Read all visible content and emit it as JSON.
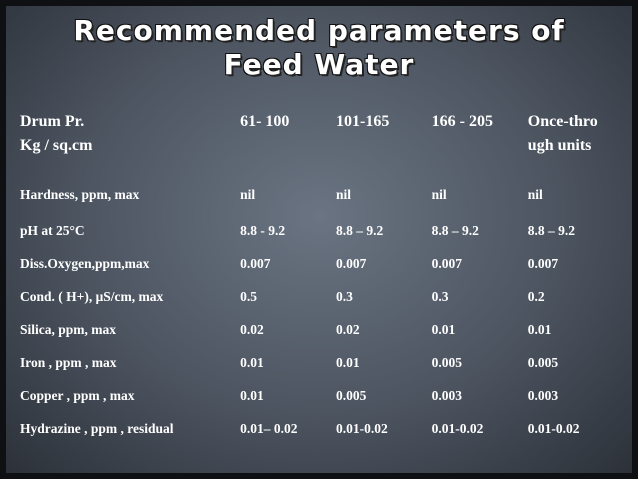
{
  "title": {
    "line1": "Recommended parameters of",
    "line2": "Feed Water"
  },
  "header": {
    "col0_line1": "Drum Pr.",
    "col0_line2": "Kg / sq.cm",
    "col1": "61- 100",
    "col2": "101-165",
    "col3": "166 - 205",
    "col4_line1": "Once-thro",
    "col4_line2": "ugh  units"
  },
  "rows": [
    {
      "param": "Hardness, ppm, max",
      "v1": "nil",
      "v2": "nil",
      "v3": "nil",
      "v4": "nil"
    },
    {
      "param": "pH at  25°C",
      "v1": "8.8 - 9.2",
      "v2": "8.8 – 9.2",
      "v3": "8.8 – 9.2",
      "v4": "8.8 – 9.2"
    },
    {
      "param": "Diss.Oxygen,ppm,max",
      "v1": "0.007",
      "v2": "0.007",
      "v3": "0.007",
      "v4": "0.007"
    },
    {
      "param": "Cond. ( H+), μS/cm, max",
      "v1": "0.5",
      "v2": "0.3",
      "v3": "0.3",
      "v4": "0.2"
    },
    {
      "param": "Silica,  ppm, max",
      "v1": "0.02",
      "v2": "0.02",
      "v3": "0.01",
      "v4": "0.01"
    },
    {
      "param": "Iron , ppm , max",
      "v1": "0.01",
      "v2": "0.01",
      "v3": "0.005",
      "v4": "0.005"
    },
    {
      "param": "Copper , ppm , max",
      "v1": "0.01",
      "v2": "0.005",
      "v3": "0.003",
      "v4": "0.003"
    },
    {
      "param": "Hydrazine , ppm , residual",
      "v1": "0.01– 0.02",
      "v2": "0.01-0.02",
      "v3": "0.01-0.02",
      "v4": "0.01-0.02"
    }
  ]
}
